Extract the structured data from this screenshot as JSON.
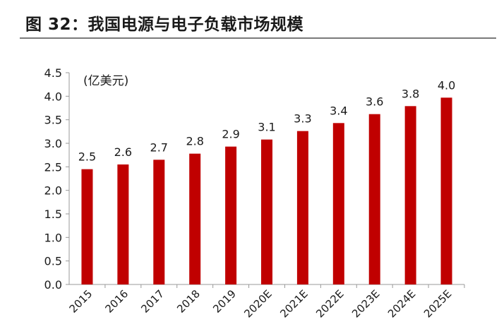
{
  "figure": {
    "title": "图 32：我国电源与电子负载市场规模"
  },
  "chart_data": {
    "type": "bar",
    "title": "",
    "unit_label": "(亿美元)",
    "xlabel": "",
    "ylabel": "",
    "categories": [
      "2015",
      "2016",
      "2017",
      "2018",
      "2019",
      "2020E",
      "2021E",
      "2022E",
      "2023E",
      "2024E",
      "2025E"
    ],
    "values": [
      2.45,
      2.55,
      2.65,
      2.78,
      2.93,
      3.08,
      3.26,
      3.43,
      3.62,
      3.79,
      3.97
    ],
    "data_labels": [
      "2.5",
      "2.6",
      "2.7",
      "2.8",
      "2.9",
      "3.1",
      "3.3",
      "3.4",
      "3.6",
      "3.8",
      "4.0"
    ],
    "ylim": [
      0,
      4.5
    ],
    "yticks": [
      "0.0",
      "0.5",
      "1.0",
      "1.5",
      "2.0",
      "2.5",
      "3.0",
      "3.5",
      "4.0",
      "4.5"
    ],
    "grid": false,
    "legend": "none",
    "bar_color": "#c00000"
  }
}
